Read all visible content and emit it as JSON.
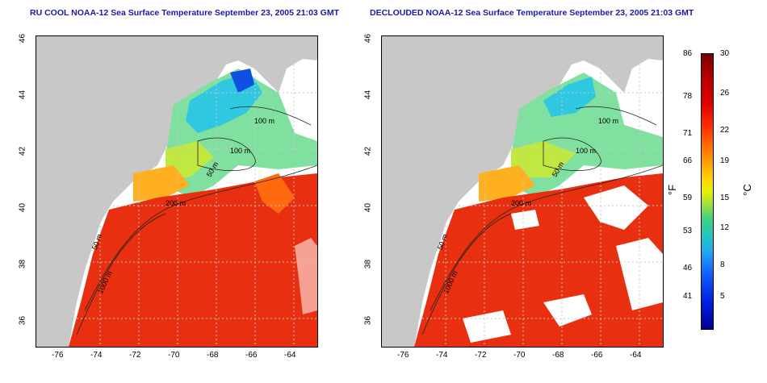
{
  "left_title": "RU COOL NOAA-12 Sea Surface Temperature September 23, 2005 21:03 GMT",
  "right_title": "DECLOUDED NOAA-12 Sea Surface Temperature September 23, 2005 21:03 GMT",
  "x_ticks": [
    "-76",
    "-74",
    "-72",
    "-70",
    "-68",
    "-66",
    "-64"
  ],
  "y_ticks": [
    "46",
    "44",
    "42",
    "40",
    "38",
    "36"
  ],
  "contour_labels": [
    "100 m",
    "100 m",
    "50 m",
    "200 m",
    "50 m",
    "1000 m"
  ],
  "colorbar": {
    "f_labels": [
      "86",
      "78",
      "71",
      "66",
      "59",
      "53",
      "46",
      "41"
    ],
    "c_labels": [
      "30",
      "26",
      "22",
      "19",
      "15",
      "12",
      "8",
      "5"
    ],
    "f_unit": "°F",
    "c_unit": "°C"
  },
  "colors": {
    "land": "#c8c8c8",
    "warm_water": "#e83010",
    "cool_water": "#40d0d0",
    "title": "#1a1aa8"
  }
}
